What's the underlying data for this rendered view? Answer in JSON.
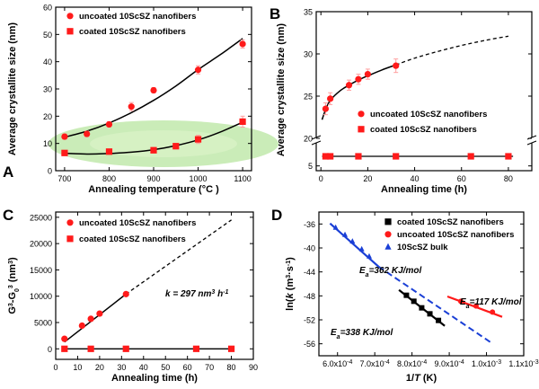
{
  "chart_data": [
    {
      "panel": "A",
      "type": "scatter",
      "xlabel": "Annealing temperature (°C )",
      "ylabel": "Average crystallite size (nm)",
      "xlim": [
        680,
        1120
      ],
      "ylim": [
        0,
        60
      ],
      "xticks": [
        "700",
        "800",
        "900",
        "1000",
        "1100"
      ],
      "yticks": [
        "0",
        "10",
        "20",
        "30",
        "40",
        "50",
        "60"
      ],
      "series": [
        {
          "name": "uncoated 10ScSZ nanofibers",
          "marker": "circle",
          "color": "#ff1a1a",
          "x": [
            700,
            750,
            800,
            850,
            900,
            1000,
            1100
          ],
          "y": [
            12.5,
            13.5,
            17,
            23.5,
            29.5,
            37,
            46.5
          ],
          "err": [
            1,
            1,
            1,
            1.5,
            1,
            1.5,
            1.5
          ]
        },
        {
          "name": "coated 10ScSZ nanofibers",
          "marker": "square",
          "color": "#ff1a1a",
          "x": [
            700,
            800,
            900,
            950,
            1000,
            1100
          ],
          "y": [
            6.5,
            7,
            7.5,
            9,
            11.5,
            18
          ],
          "err": [
            0.8,
            0.8,
            1,
            1,
            1.5,
            2
          ]
        }
      ],
      "fits": [
        {
          "x": [
            700,
            750,
            800,
            850,
            900,
            950,
            1000,
            1050,
            1100
          ],
          "y": [
            12.3,
            14.5,
            17.5,
            21.3,
            25.8,
            31.1,
            37.1,
            42.6,
            48.5
          ]
        },
        {
          "x": [
            700,
            750,
            800,
            850,
            900,
            950,
            1000,
            1050,
            1100
          ],
          "y": [
            6.4,
            6.1,
            6.3,
            6.8,
            7.7,
            9.2,
            11.3,
            14.2,
            17.8
          ]
        }
      ],
      "highlight": "green ellipse around coated nanofiber series"
    },
    {
      "panel": "B",
      "type": "scatter",
      "xlabel": "Annealing time (h)",
      "ylabel": "Average crystallite size (nm)",
      "xlim": [
        -2,
        90
      ],
      "broken_axis": true,
      "upper_ylim": [
        20,
        35
      ],
      "lower_ylim": [
        4,
        10
      ],
      "xticks": [
        "0",
        "20",
        "40",
        "60",
        "80"
      ],
      "upper_yticks": [
        "20",
        "25",
        "30",
        "35"
      ],
      "lower_yticks": [
        "5"
      ],
      "series": [
        {
          "name": "uncoated 10ScSZ nanofibers",
          "marker": "circle",
          "color": "#ff1a1a",
          "x": [
            2,
            4,
            12,
            16,
            20,
            32
          ],
          "y": [
            23.5,
            24.7,
            26.3,
            27,
            27.6,
            28.6
          ],
          "err": [
            0.7,
            0.7,
            0.6,
            0.6,
            0.6,
            0.8
          ]
        },
        {
          "name": "coated 10ScSZ nanofibers",
          "marker": "square",
          "color": "#ff1a1a",
          "x": [
            2,
            4,
            16,
            32,
            64,
            80
          ],
          "y": [
            7,
            7,
            7,
            7,
            7,
            7
          ],
          "err": [
            0.4,
            0.4,
            0.4,
            0.4,
            0.4,
            0.4
          ]
        }
      ],
      "fit_solid": {
        "x": [
          0.5,
          2,
          4,
          8,
          12,
          16,
          20,
          26,
          32
        ],
        "y": [
          22.2,
          23.4,
          24.5,
          25.6,
          26.3,
          26.9,
          27.4,
          28.1,
          28.7
        ]
      },
      "fit_dashed": {
        "x": [
          32,
          40,
          50,
          60,
          70,
          80
        ],
        "y": [
          28.7,
          29.5,
          30.3,
          31.0,
          31.6,
          32.1
        ]
      }
    },
    {
      "panel": "C",
      "type": "scatter",
      "xlabel": "Annealing time (h)",
      "ylabel_parts": [
        "G",
        "3",
        "-G",
        "0",
        "3",
        " (nm",
        "3",
        ")"
      ],
      "xlim": [
        0,
        90
      ],
      "ylim": [
        -2000,
        26000
      ],
      "xticks": [
        "0",
        "10",
        "20",
        "30",
        "40",
        "50",
        "60",
        "70",
        "80",
        "90"
      ],
      "yticks": [
        "0",
        "5000",
        "10000",
        "15000",
        "20000",
        "25000"
      ],
      "series": [
        {
          "name": "uncoated 10ScSZ nanofibers",
          "marker": "circle",
          "color": "#ff1a1a",
          "x": [
            4,
            12,
            16,
            20,
            32
          ],
          "y": [
            1900,
            4400,
            5700,
            6700,
            10400
          ]
        },
        {
          "name": "coated 10ScSZ nanofibers",
          "marker": "square",
          "color": "#ff1a1a",
          "x": [
            4,
            16,
            32,
            64,
            80
          ],
          "y": [
            0,
            0,
            0,
            0,
            0
          ]
        }
      ],
      "fit_solid": {
        "x": [
          4,
          32
        ],
        "y": [
          1300,
          10400
        ]
      },
      "fit_dashed": {
        "x": [
          32,
          80
        ],
        "y": [
          10400,
          24500
        ]
      },
      "fit_flat": {
        "x": [
          4,
          80
        ],
        "y": [
          0,
          0
        ]
      },
      "annotation_parts": [
        "k",
        " = 297 nm",
        "3",
        " h",
        "-1"
      ]
    },
    {
      "panel": "D",
      "type": "scatter",
      "xlabel_parts": [
        "1/",
        "T",
        " (K)"
      ],
      "ylabel_parts": [
        "ln(",
        "k",
        " (m",
        "3",
        "·s",
        "-1",
        ")"
      ],
      "xlim": [
        0.00055,
        0.0011
      ],
      "ylim": [
        -58,
        -34
      ],
      "xticks": [
        "6.0x10",
        "7.0x10",
        "8.0x10",
        "9.0x10",
        "1.0x10",
        "1.1x10"
      ],
      "xtick_exp": "-4",
      "xtick_exp_last2": "-3",
      "yticks": [
        "-36",
        "-40",
        "-44",
        "-48",
        "-52",
        "-56"
      ],
      "series": [
        {
          "name": "coated 10ScSZ nanofibers",
          "marker": "square",
          "color": "#000000",
          "x": [
            0.000785,
            0.000805,
            0.000826,
            0.000848,
            0.000871
          ],
          "y": [
            -47.9,
            -48.9,
            -50.0,
            -51.0,
            -52.1
          ]
        },
        {
          "name": "uncoated 10ScSZ nanofibers",
          "marker": "circle",
          "color": "#ff1a1a",
          "x": [
            0.000931,
            0.000972,
            0.001016
          ],
          "y": [
            -48.9,
            -49.7,
            -50.7
          ]
        },
        {
          "name": "10ScSZ bulk",
          "marker": "triangle",
          "color": "#1a3fd6",
          "x": [
            0.000595,
            0.00062,
            0.00064,
            0.000665,
            0.000685
          ],
          "y": [
            -36.6,
            -37.8,
            -38.9,
            -40.2,
            -41.4
          ]
        }
      ],
      "fits": [
        {
          "x": [
            0.000765,
            0.000888
          ],
          "y": [
            -47.0,
            -53.0
          ],
          "color": "#000000",
          "style": "solid"
        },
        {
          "x": [
            0.000895,
            0.001042
          ],
          "y": [
            -48.1,
            -51.5
          ],
          "color": "#ff1a1a",
          "style": "solid"
        },
        {
          "x": [
            0.00058,
            0.00071
          ],
          "y": [
            -35.9,
            -43.1
          ],
          "color": "#1a3fd6",
          "style": "solid"
        },
        {
          "x": [
            0.00071,
            0.00101
          ],
          "y": [
            -43.1,
            -55.7
          ],
          "color": "#1a3fd6",
          "style": "dashed"
        }
      ],
      "annotations": [
        {
          "sub": "a",
          "value": "=362 KJ/mol",
          "color": "#000000"
        },
        {
          "sub": "a",
          "value": "=117 KJ/mol",
          "color": "#000000"
        },
        {
          "sub": "a",
          "value": "=338 KJ/mol",
          "color": "#000000"
        }
      ],
      "annotation_symbol": "E"
    }
  ]
}
